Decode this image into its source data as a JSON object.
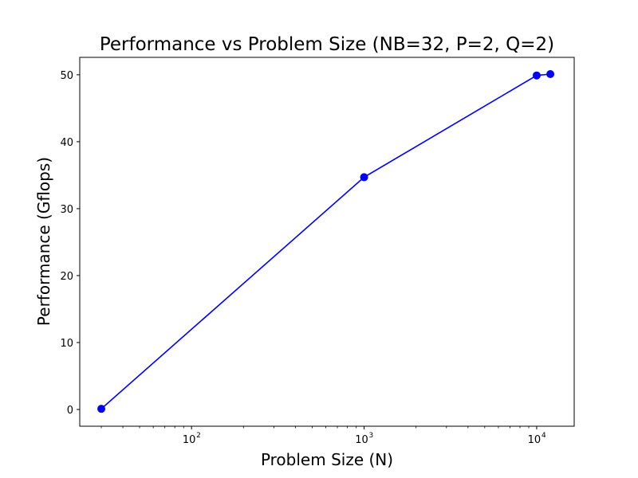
{
  "chart_data": {
    "type": "line",
    "title": "Performance vs Problem Size (NB=32, P=2, Q=2)",
    "xlabel": "Problem Size (N)",
    "ylabel": "Performance (Gflops)",
    "xscale": "log",
    "xlim": [
      22.5,
      16500
    ],
    "ylim": [
      -2.5,
      52.6
    ],
    "grid": false,
    "x_ticks": [
      {
        "value": 100,
        "base": "10",
        "exp": "2"
      },
      {
        "value": 1000,
        "base": "10",
        "exp": "3"
      },
      {
        "value": 10000,
        "base": "10",
        "exp": "4"
      }
    ],
    "y_ticks": [
      0,
      10,
      20,
      30,
      40,
      50
    ],
    "series": [
      {
        "color": "#0000ff",
        "marker": "circle",
        "x": [
          30,
          1000,
          10000,
          12000
        ],
        "y": [
          0.1,
          34.7,
          49.9,
          50.1
        ]
      }
    ]
  }
}
